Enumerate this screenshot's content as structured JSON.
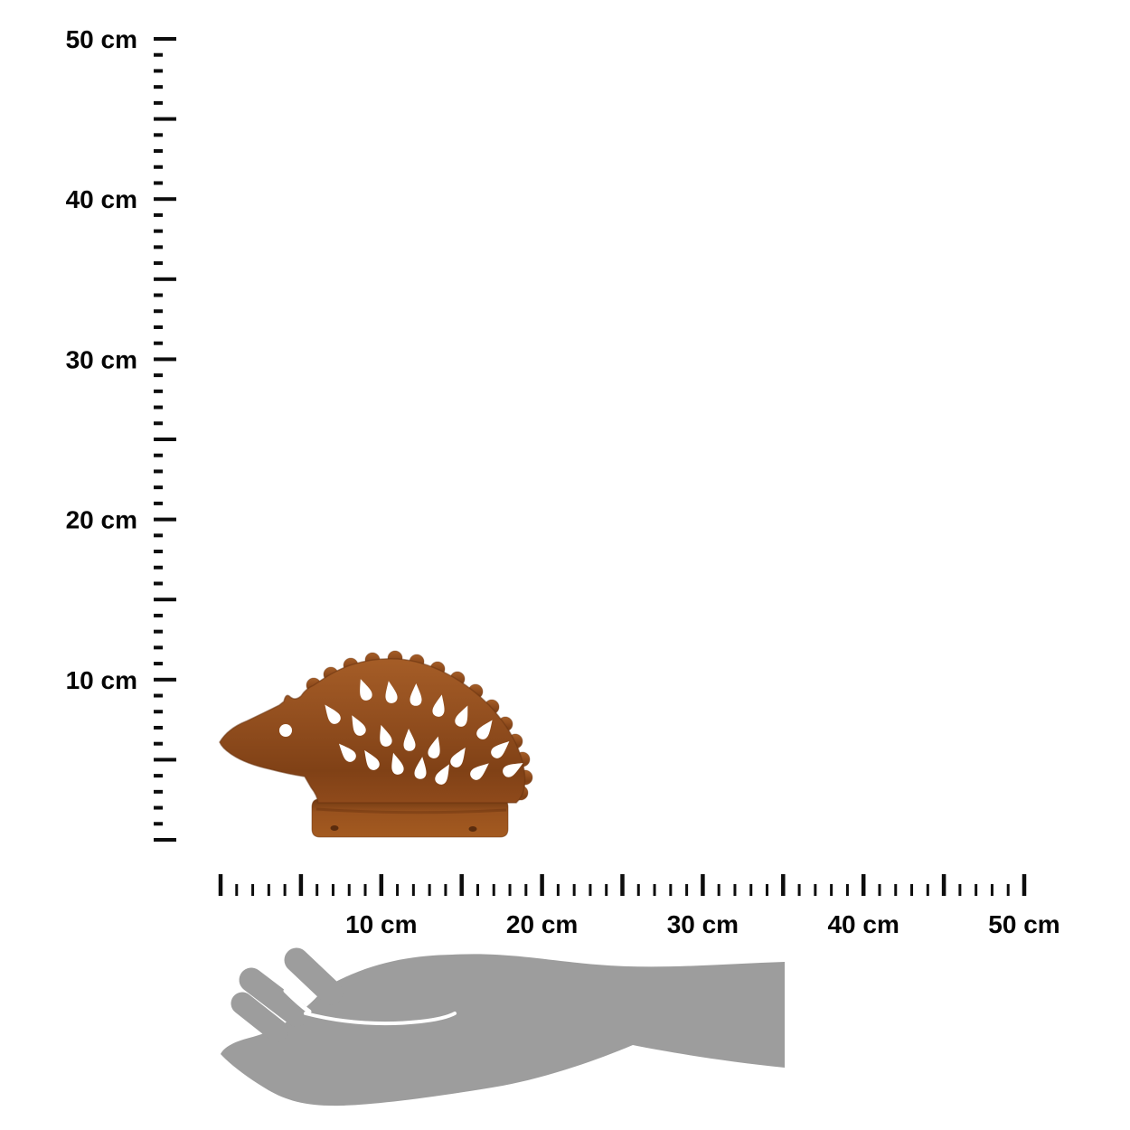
{
  "page": {
    "background_color": "#ffffff",
    "kind": "product dimension diagram"
  },
  "rulers": {
    "unit": "cm",
    "tick_color": "#0d0d0d",
    "label_color": "#050505",
    "vertical": {
      "range_cm": [
        0,
        50
      ],
      "minor_step_cm": 1,
      "major_step_cm": 5,
      "labels": [
        {
          "cm": 50,
          "text": "50 cm"
        },
        {
          "cm": 40,
          "text": "40 cm"
        },
        {
          "cm": 30,
          "text": "30 cm"
        },
        {
          "cm": 20,
          "text": "20 cm"
        },
        {
          "cm": 10,
          "text": "10 cm"
        }
      ]
    },
    "horizontal": {
      "range_cm": [
        0,
        50
      ],
      "minor_step_cm": 1,
      "major_step_cm": 5,
      "labels": [
        {
          "cm": 10,
          "text": "10 cm"
        },
        {
          "cm": 20,
          "text": "20 cm"
        },
        {
          "cm": 30,
          "text": "30 cm"
        },
        {
          "cm": 40,
          "text": "40 cm"
        },
        {
          "cm": 50,
          "text": "50 cm"
        }
      ]
    }
  },
  "product_image": {
    "semantic": "rusted-metal-hedgehog-figure",
    "body_color_light": "#a86229",
    "body_color_mid": "#93501f",
    "body_color_dark": "#7a3d14",
    "edge_color": "#6b3410",
    "hole_color": "#5a2c0e",
    "cutout_color": "#ffffff"
  },
  "hand_silhouette": {
    "semantic": "human-hand-for-scale",
    "color": "#9d9d9d",
    "crease_color": "#ffffff"
  }
}
